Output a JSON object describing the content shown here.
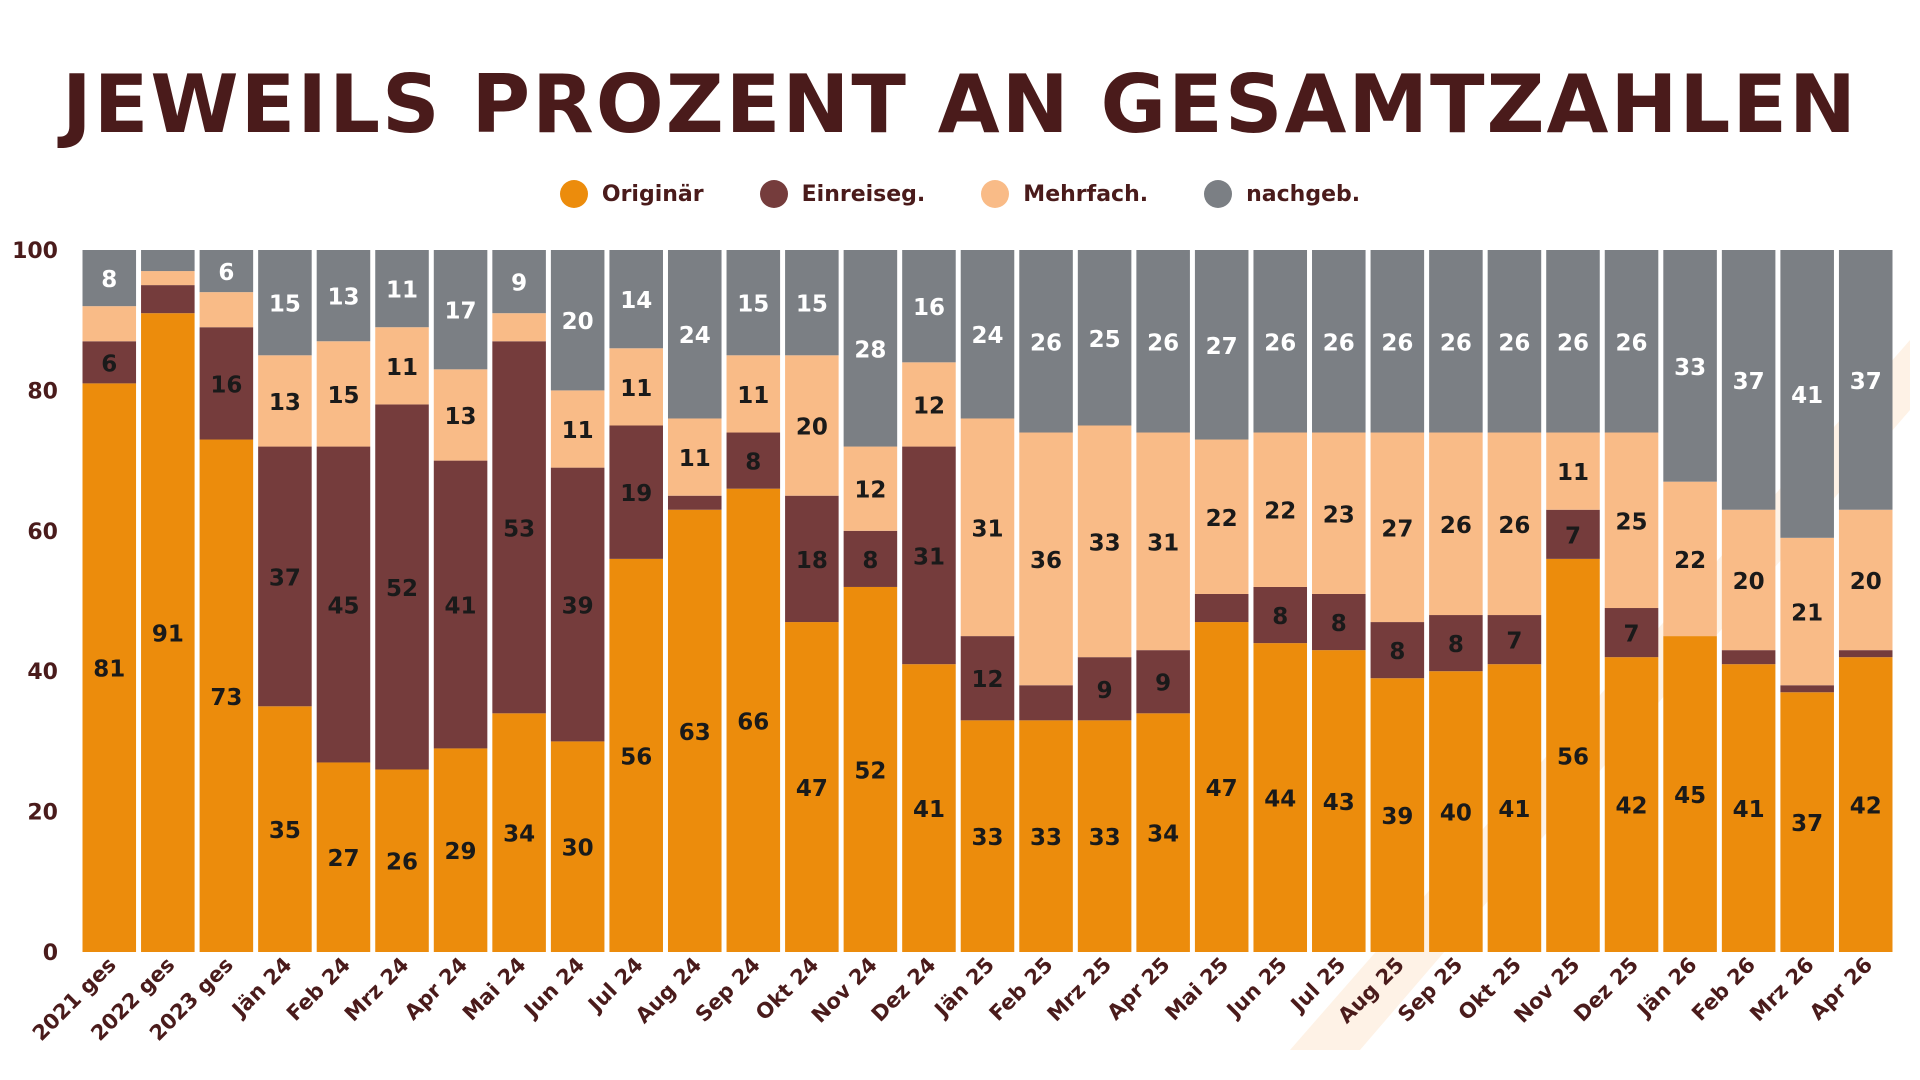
{
  "title": "JEWEILS PROZENT AN GESAMTZAHLEN",
  "legend": [
    {
      "label": "Originär",
      "color": "#ec8c0c"
    },
    {
      "label": "Einreiseg.",
      "color": "#753c3c"
    },
    {
      "label": "Mehrfach.",
      "color": "#f9bb87"
    },
    {
      "label": "nachgeb.",
      "color": "#7b7f84"
    }
  ],
  "chart_data": {
    "type": "bar",
    "stacked": true,
    "ylim": [
      0,
      100
    ],
    "yticks": [
      0,
      20,
      40,
      60,
      80,
      100
    ],
    "grid": false,
    "legend_position": "top",
    "categories": [
      "2021 ges",
      "2022 ges",
      "2023 ges",
      "Jän 24",
      "Feb 24",
      "Mrz 24",
      "Apr 24",
      "Mai 24",
      "Jun 24",
      "Jul 24",
      "Aug 24",
      "Sep 24",
      "Okt 24",
      "Nov 24",
      "Dez 24",
      "Jän 25",
      "Feb 25",
      "Mrz 25",
      "Apr 25",
      "Mai 25",
      "Jun 25",
      "Jul 25",
      "Aug 25",
      "Sep 25",
      "Okt 25",
      "Nov 25",
      "Dez 25",
      "Jän 26",
      "Feb 26",
      "Mrz 26",
      "Apr 26"
    ],
    "series": [
      {
        "name": "Originär",
        "color": "#ec8c0c",
        "values": [
          81,
          91,
          73,
          35,
          27,
          26,
          29,
          34,
          30,
          56,
          63,
          66,
          47,
          52,
          41,
          33,
          33,
          33,
          34,
          47,
          44,
          43,
          39,
          40,
          41,
          56,
          42,
          45,
          41,
          37,
          42
        ],
        "labels": [
          "81",
          "91",
          "73",
          "35",
          "27",
          "26",
          "29",
          "34",
          "30",
          "56",
          "63",
          "66",
          "47",
          "52",
          "41",
          "33",
          "33",
          "33",
          "34",
          "47",
          "44",
          "43",
          "39",
          "40",
          "41",
          "56",
          "42",
          "45",
          "41",
          "37",
          "42"
        ]
      },
      {
        "name": "Einreiseg.",
        "color": "#753c3c",
        "values": [
          6,
          4,
          16,
          37,
          45,
          52,
          41,
          53,
          39,
          19,
          2,
          8,
          18,
          8,
          31,
          12,
          5,
          9,
          9,
          4,
          8,
          8,
          8,
          8,
          7,
          7,
          7,
          0,
          2,
          1,
          1
        ],
        "labels": [
          "6",
          "",
          "16",
          "37",
          "45",
          "52",
          "41",
          "53",
          "39",
          "19",
          "",
          "8",
          "18",
          "8",
          "31",
          "12",
          "",
          "9",
          "9",
          "",
          "8",
          "8",
          "8",
          "8",
          "7",
          "7",
          "7",
          "",
          "",
          "",
          ""
        ]
      },
      {
        "name": "Mehrfach.",
        "color": "#f9bb87",
        "values": [
          5,
          2,
          5,
          13,
          15,
          11,
          13,
          4,
          11,
          11,
          11,
          11,
          20,
          12,
          12,
          31,
          36,
          33,
          31,
          22,
          22,
          23,
          27,
          26,
          26,
          11,
          25,
          22,
          20,
          21,
          20
        ],
        "labels": [
          "",
          "",
          "",
          "13",
          "15",
          "11",
          "13",
          "",
          "11",
          "11",
          "11",
          "11",
          "20",
          "12",
          "12",
          "31",
          "36",
          "33",
          "31",
          "22",
          "22",
          "23",
          "27",
          "26",
          "26",
          "11",
          "25",
          "22",
          "20",
          "21",
          "20"
        ]
      },
      {
        "name": "nachgeb.",
        "color": "#7b7f84",
        "values": [
          8,
          3,
          6,
          15,
          13,
          11,
          17,
          9,
          20,
          14,
          24,
          15,
          15,
          28,
          16,
          24,
          26,
          25,
          26,
          27,
          26,
          26,
          26,
          26,
          26,
          26,
          26,
          33,
          37,
          41,
          37
        ],
        "labels": [
          "8",
          "",
          "6",
          "15",
          "13",
          "11",
          "17",
          "9",
          "20",
          "14",
          "24",
          "15",
          "15",
          "28",
          "16",
          "24",
          "26",
          "25",
          "26",
          "27",
          "26",
          "26",
          "26",
          "26",
          "26",
          "26",
          "26",
          "33",
          "37",
          "41",
          "37"
        ]
      }
    ]
  }
}
